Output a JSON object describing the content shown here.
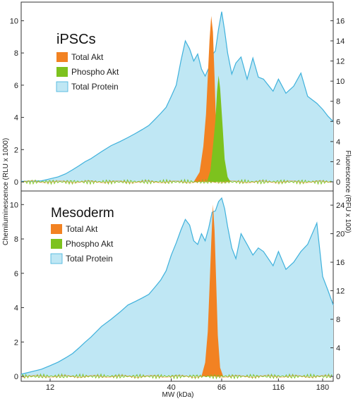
{
  "chart_data": {
    "type": "area",
    "xlabel": "MW (kDa)",
    "x_scale": "log",
    "x_ticks": [
      "12",
      "40",
      "66",
      "116",
      "180"
    ],
    "left_ylabel": "Chemiluminescence (RLU x 1000)",
    "right_ylabel": "Fluorescence (RFU x 100)",
    "colors": {
      "total_akt": "#F28222",
      "phospho_akt": "#7DC21E",
      "total_protein_fill": "#BFE7F4",
      "total_protein_line": "#3FB1DC"
    },
    "panels": [
      {
        "title": "iPSCs",
        "left_ylim": [
          0,
          10.5
        ],
        "left_ticks": [
          "0",
          "2",
          "4",
          "6",
          "8",
          "10"
        ],
        "right_ylim": [
          0,
          16.8
        ],
        "right_ticks": [
          "0",
          "2",
          "4",
          "6",
          "8",
          "10",
          "12",
          "14",
          "16"
        ],
        "series": [
          {
            "name": "Total Akt",
            "axis": "left",
            "x": [
              50,
              53,
              55,
              56.5,
              57.5,
              58.5,
              59.5,
              60.5,
              61.5,
              62.5,
              64,
              66
            ],
            "values": [
              0,
              0.6,
              2.2,
              4.2,
              6.5,
              8.8,
              10.3,
              9.3,
              6.5,
              3.2,
              0.6,
              0
            ]
          },
          {
            "name": "Phospho Akt",
            "axis": "left",
            "x": [
              57,
              59,
              60.5,
              62,
              63,
              64,
              65,
              66.5,
              68,
              70,
              72
            ],
            "values": [
              0,
              0.7,
              2.2,
              3.8,
              5.6,
              6.6,
              5.8,
              3.6,
              1.4,
              0.3,
              0
            ]
          },
          {
            "name": "Total Protein",
            "axis": "right",
            "x": [
              9,
              11,
              12,
              13,
              14,
              15,
              16,
              17,
              18,
              20,
              22,
              24,
              26,
              28,
              30,
              32,
              34,
              36,
              38,
              40,
              42,
              44,
              46,
              48,
              50,
              52,
              54,
              56,
              58,
              60,
              62,
              64,
              66,
              68,
              70,
              73,
              76,
              80,
              85,
              90,
              95,
              100,
              110,
              116,
              125,
              135,
              145,
              155,
              170,
              180,
              190,
              200
            ],
            "values": [
              0.05,
              0.1,
              0.3,
              0.5,
              0.8,
              1.2,
              1.6,
              2.0,
              2.3,
              3.0,
              3.6,
              4.0,
              4.4,
              4.8,
              5.2,
              5.6,
              6.2,
              6.8,
              7.4,
              8.5,
              9.6,
              12.0,
              14.0,
              13.2,
              12.0,
              12.7,
              11.2,
              10.5,
              11.3,
              12.6,
              13.0,
              15.2,
              16.9,
              15.0,
              12.8,
              10.7,
              11.8,
              12.4,
              10.2,
              12.3,
              10.4,
              10.2,
              9.0,
              10.2,
              8.8,
              9.5,
              10.8,
              8.5,
              7.8,
              7.2,
              6.5,
              6.0
            ]
          }
        ]
      },
      {
        "title": "Mesoderm",
        "left_ylim": [
          0,
          10.3
        ],
        "left_ticks": [
          "0",
          "2",
          "4",
          "6",
          "8",
          "10"
        ],
        "right_ylim": [
          0,
          24.8
        ],
        "right_ticks": [
          "0",
          "4",
          "8",
          "12",
          "16",
          "20",
          "24"
        ],
        "series": [
          {
            "name": "Total Akt",
            "axis": "left",
            "x": [
              54,
              56,
              57.5,
              58.5,
              59.5,
              60.5,
              61.5,
              62.5,
              63.5,
              65,
              67
            ],
            "values": [
              0,
              0.8,
              2.6,
              5.2,
              7.8,
              10.0,
              8.5,
              5.5,
              2.4,
              0.5,
              0
            ]
          },
          {
            "name": "Phospho Akt",
            "axis": "left",
            "x": [
              9,
              200
            ],
            "values": [
              0,
              0
            ]
          },
          {
            "name": "Total Protein",
            "axis": "right",
            "x": [
              9,
              11,
              12,
              13,
              14,
              15,
              16,
              17,
              18,
              20,
              22,
              24,
              26,
              28,
              30,
              32,
              34,
              36,
              38,
              40,
              42,
              44,
              46,
              48,
              50,
              52,
              54,
              56,
              58,
              60,
              62,
              64,
              66,
              68,
              70,
              73,
              76,
              80,
              85,
              90,
              95,
              100,
              110,
              116,
              125,
              135,
              145,
              155,
              170,
              180,
              190,
              200
            ],
            "values": [
              0.3,
              1.0,
              1.5,
              2.0,
              2.6,
              3.2,
              4.0,
              4.8,
              5.5,
              7.0,
              8.0,
              9.0,
              10.0,
              10.5,
              11.0,
              11.5,
              12.5,
              13.5,
              14.8,
              17.0,
              18.7,
              20.5,
              22.0,
              21.2,
              19.0,
              18.5,
              20.0,
              19.0,
              20.8,
              23.0,
              23.2,
              24.5,
              25.0,
              23.5,
              21.0,
              18.0,
              16.5,
              20.0,
              18.5,
              17.0,
              18.0,
              17.5,
              15.5,
              17.5,
              15.0,
              16.0,
              17.5,
              18.5,
              21.5,
              14.0,
              12.0,
              10.0
            ]
          }
        ]
      }
    ]
  }
}
